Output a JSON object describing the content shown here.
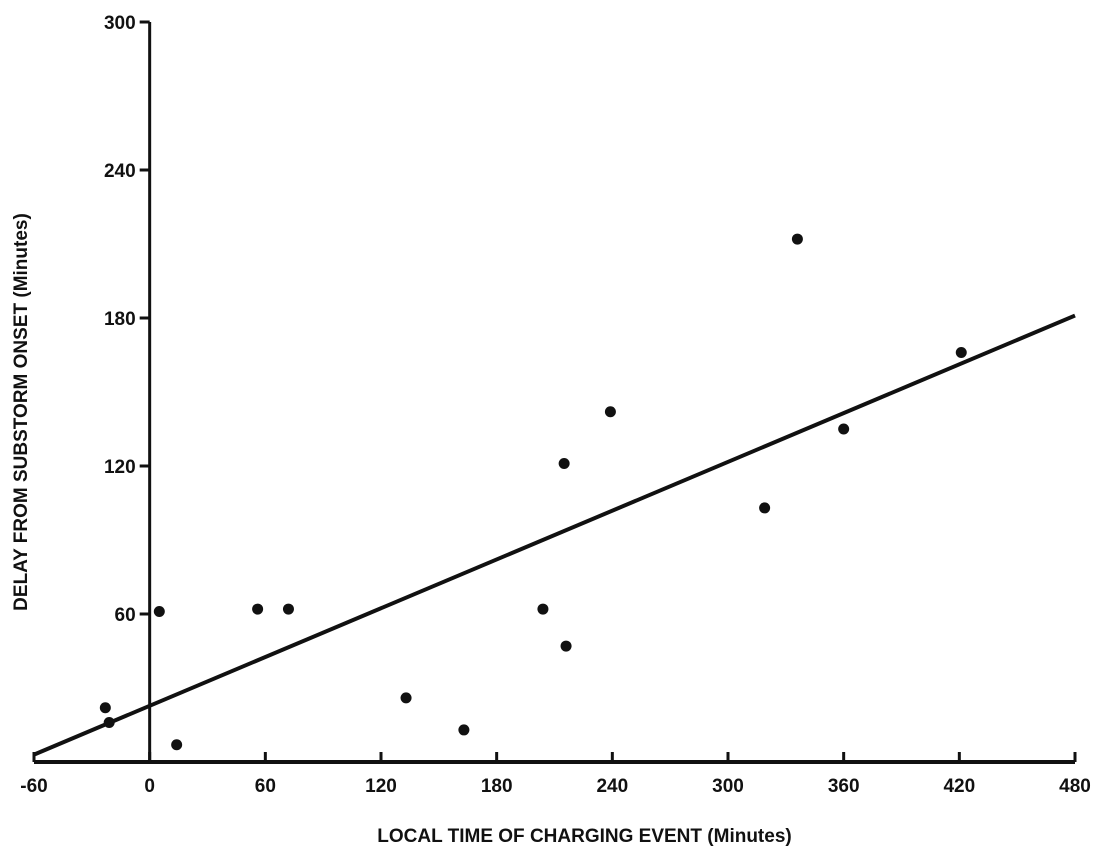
{
  "chart_data": {
    "type": "scatter",
    "title": "",
    "xlabel": "LOCAL TIME OF CHARGING EVENT (Minutes)",
    "ylabel": "DELAY FROM SUBSTORM ONSET (Minutes)",
    "xlim": [
      -60,
      480
    ],
    "ylim": [
      0,
      300
    ],
    "x_ticks": [
      -60,
      0,
      60,
      120,
      180,
      240,
      300,
      360,
      420,
      480
    ],
    "x_tick_labels": [
      "-60",
      "0",
      "60",
      "120",
      "180",
      "240",
      "300",
      "360",
      "420",
      "480"
    ],
    "y_ticks": [
      60,
      120,
      180,
      240,
      300
    ],
    "y_tick_labels": [
      "60",
      "120",
      "180",
      "240",
      "300"
    ],
    "grid": false,
    "series": [
      {
        "type": "scatter",
        "points": [
          {
            "x": -23,
            "y": 22
          },
          {
            "x": -21,
            "y": 16
          },
          {
            "x": 5,
            "y": 61
          },
          {
            "x": 14,
            "y": 7
          },
          {
            "x": 56,
            "y": 62
          },
          {
            "x": 72,
            "y": 62
          },
          {
            "x": 133,
            "y": 26
          },
          {
            "x": 163,
            "y": 13
          },
          {
            "x": 204,
            "y": 62
          },
          {
            "x": 215,
            "y": 121
          },
          {
            "x": 216,
            "y": 47
          },
          {
            "x": 239,
            "y": 142
          },
          {
            "x": 319,
            "y": 103
          },
          {
            "x": 336,
            "y": 212
          },
          {
            "x": 360,
            "y": 135
          },
          {
            "x": 421,
            "y": 166
          }
        ]
      },
      {
        "type": "line",
        "points": [
          {
            "x": -60,
            "y": 3
          },
          {
            "x": 480,
            "y": 181
          }
        ]
      }
    ]
  }
}
